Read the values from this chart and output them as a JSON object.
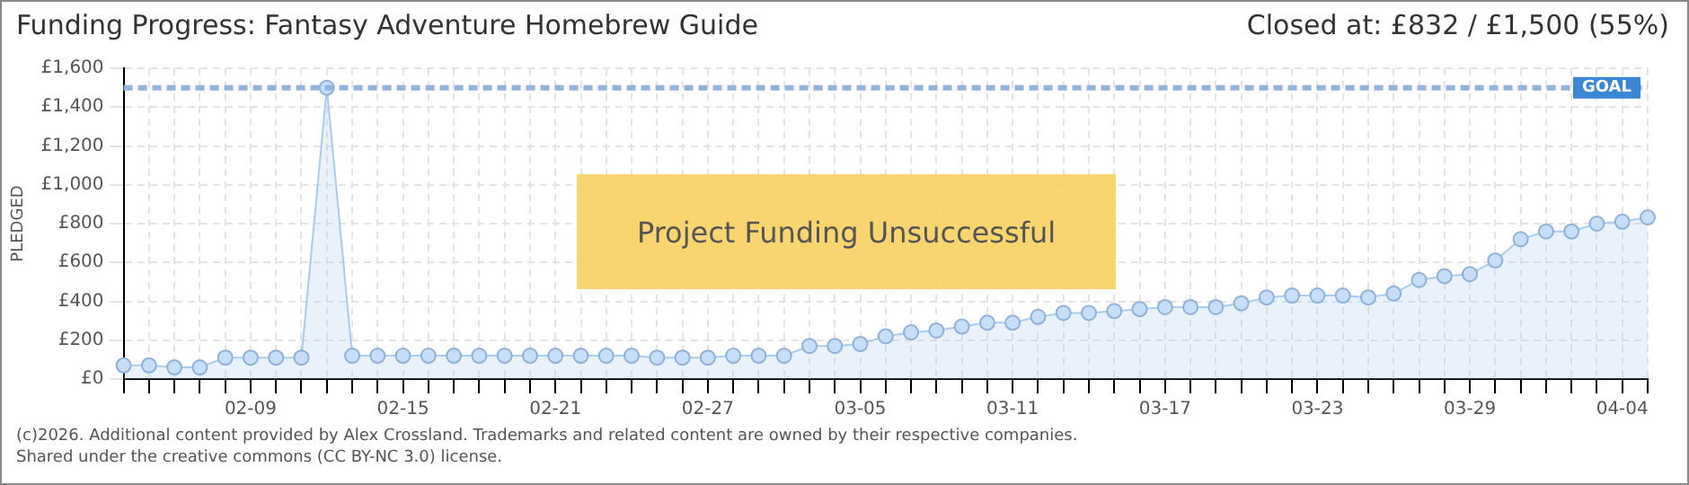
{
  "chart_data": {
    "type": "area",
    "title": "Funding Progress: Fantasy Adventure Homebrew Guide",
    "subtitle": "Closed at:  £832 / £1,500 (55%)",
    "ylabel": "PLEDGED",
    "categories": [
      null,
      null,
      null,
      null,
      null,
      "02-09",
      null,
      null,
      null,
      null,
      null,
      "02-15",
      null,
      null,
      null,
      null,
      null,
      "02-21",
      null,
      null,
      null,
      null,
      null,
      "02-27",
      null,
      null,
      null,
      null,
      null,
      "03-05",
      null,
      null,
      null,
      null,
      null,
      "03-11",
      null,
      null,
      null,
      null,
      null,
      "03-17",
      null,
      null,
      null,
      null,
      null,
      "03-23",
      null,
      null,
      null,
      null,
      null,
      "03-29",
      null,
      null,
      null,
      null,
      null,
      "04-04",
      null
    ],
    "series": [
      {
        "color": "#a9cdf0",
        "values": [
          70,
          70,
          60,
          60,
          110,
          110,
          110,
          110,
          1500,
          120,
          120,
          120,
          120,
          120,
          120,
          120,
          120,
          120,
          120,
          120,
          120,
          110,
          110,
          110,
          120,
          120,
          120,
          170,
          170,
          180,
          220,
          240,
          250,
          270,
          290,
          290,
          320,
          340,
          340,
          350,
          360,
          370,
          370,
          370,
          390,
          420,
          430,
          430,
          430,
          420,
          440,
          510,
          530,
          540,
          610,
          720,
          760,
          760,
          800,
          810,
          832
        ]
      }
    ],
    "ylim": [
      0,
      1600
    ],
    "yticks": [
      {
        "value": 0,
        "label": "£0"
      },
      {
        "value": 200,
        "label": "£200"
      },
      {
        "value": 400,
        "label": "£400"
      },
      {
        "value": 600,
        "label": "£600"
      },
      {
        "value": 800,
        "label": "£800"
      },
      {
        "value": 1000,
        "label": "£1,000"
      },
      {
        "value": 1200,
        "label": "£1,200"
      },
      {
        "value": 1400,
        "label": "£1,400"
      },
      {
        "value": 1600,
        "label": "£1,600"
      }
    ],
    "grid": true,
    "marker": "circle",
    "ref_lines": [
      {
        "axis": "y",
        "value": 1500,
        "label": "GOAL",
        "color": "#8fb4e0",
        "line_style": "dashed"
      }
    ],
    "annotations": [
      "Project Funding Unsuccessful",
      "(c)2026. Additional content provided by Alex Crossland. Trademarks and related content are owned by their respective companies.",
      "Shared under the creative commons (CC BY-NC 3.0) license."
    ]
  }
}
